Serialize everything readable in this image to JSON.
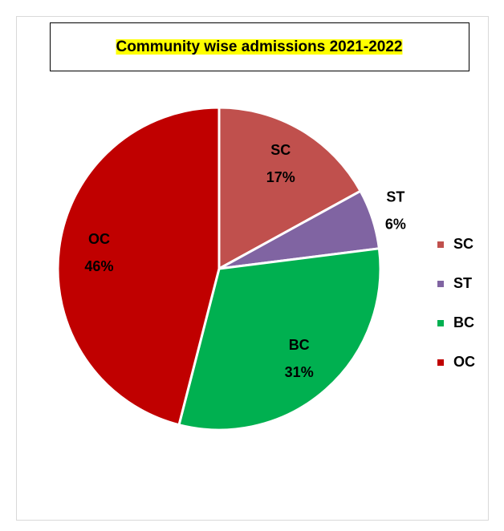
{
  "chart_data": {
    "type": "pie",
    "title": "Community wise admissions 2021-2022",
    "categories": [
      "SC",
      "ST",
      "BC",
      "OC"
    ],
    "values": [
      17,
      6,
      31,
      46
    ],
    "value_labels": [
      "17%",
      "6%",
      "31%",
      "46%"
    ],
    "colors": [
      "#c0504d",
      "#8064a2",
      "#00b050",
      "#c00000"
    ],
    "legend": "right"
  }
}
